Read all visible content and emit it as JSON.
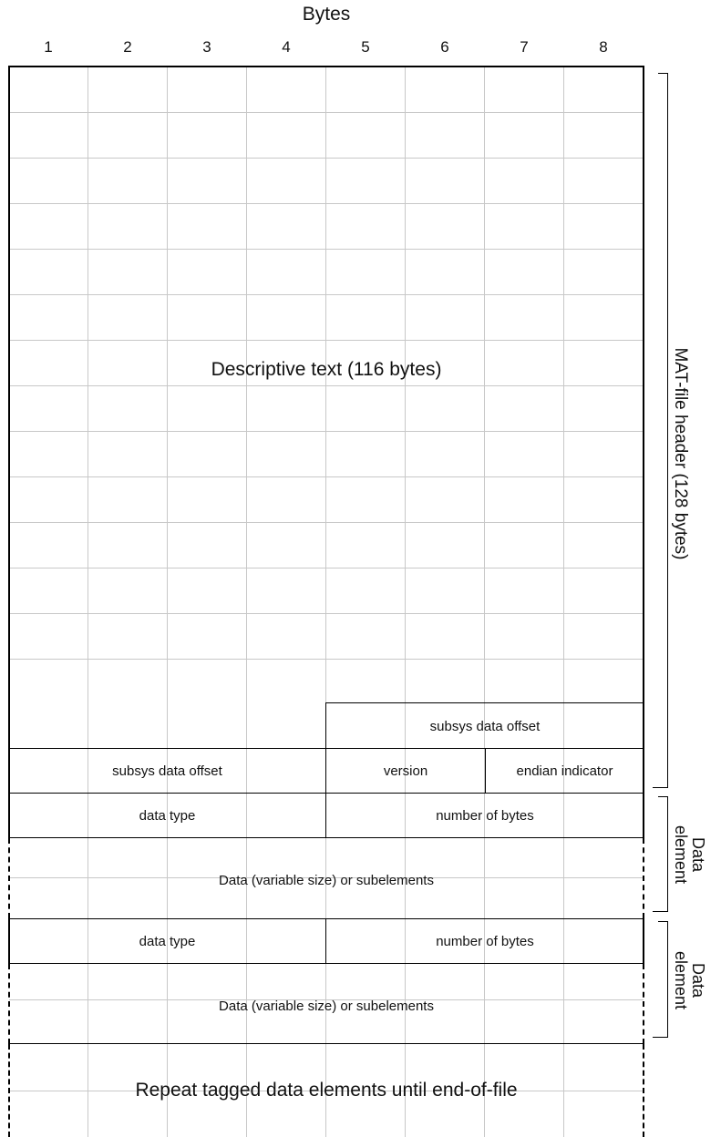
{
  "header": {
    "title": "Bytes",
    "columns": [
      "1",
      "2",
      "3",
      "4",
      "5",
      "6",
      "7",
      "8"
    ]
  },
  "header_block": {
    "descriptive_text": "Descriptive text (116 bytes)",
    "subsys_offset_right": "subsys data offset",
    "subsys_offset_left": "subsys data offset",
    "version": "version",
    "endian": "endian indicator",
    "side_label": "MAT-file header (128 bytes)"
  },
  "data_elements": [
    {
      "data_type": "data type",
      "number_of_bytes": "number of bytes",
      "data": "Data (variable size) or subelements",
      "side_label_line1": "Data",
      "side_label_line2": "element"
    },
    {
      "data_type": "data type",
      "number_of_bytes": "number of bytes",
      "data": "Data (variable size) or subelements",
      "side_label_line1": "Data",
      "side_label_line2": "element"
    }
  ],
  "footer": {
    "repeat_text": "Repeat tagged data elements until end-of-file"
  }
}
